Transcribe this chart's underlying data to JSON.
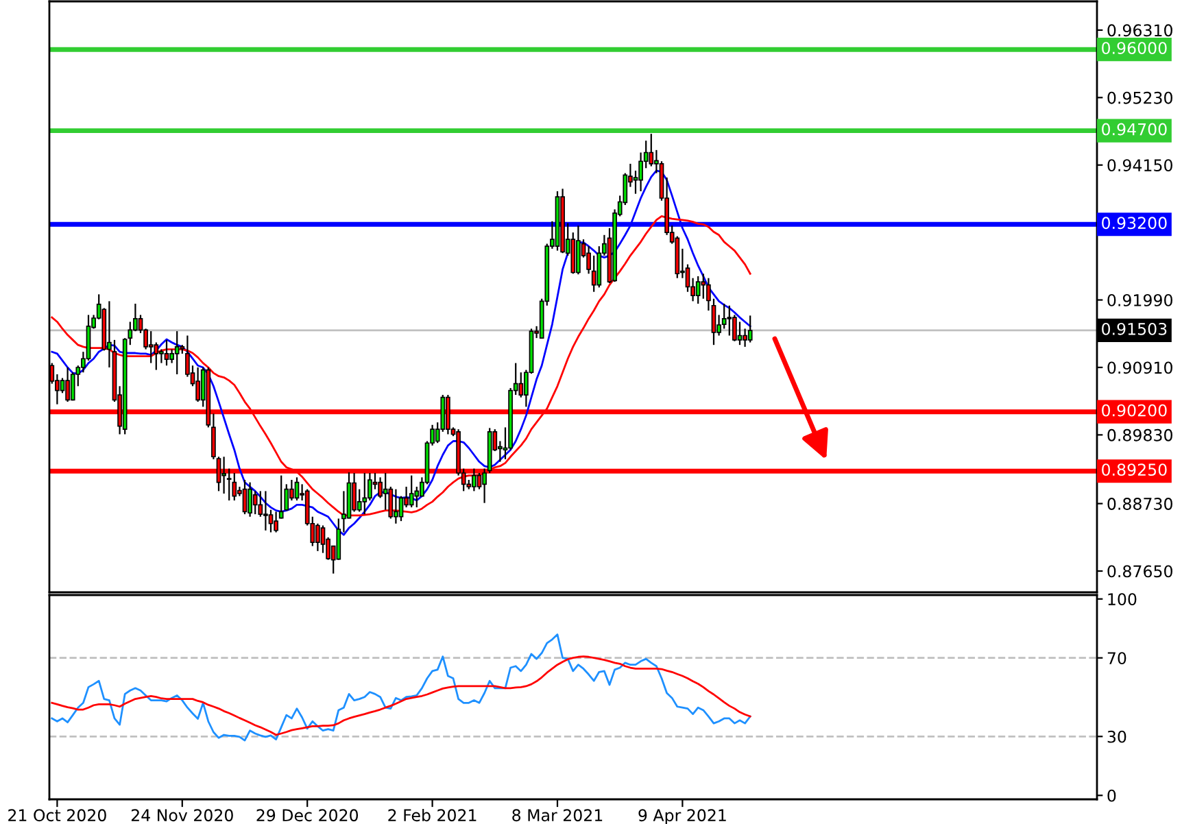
{
  "chart_data": [
    {
      "type": "candlestick",
      "categories": [
        null,
        null,
        null,
        null,
        null,
        null,
        null,
        null,
        null,
        null,
        null,
        null,
        null,
        null,
        null,
        null,
        null,
        null,
        null,
        null,
        null,
        null,
        null,
        null,
        null,
        null,
        null,
        null,
        null,
        null,
        null,
        null,
        null,
        null,
        null,
        null,
        null,
        null,
        null,
        null,
        null,
        null,
        null,
        null,
        null,
        null,
        null,
        null,
        null,
        null,
        null,
        null,
        null,
        null,
        null,
        null,
        null,
        null,
        null,
        null,
        null,
        null,
        null,
        null,
        null,
        null,
        null,
        null,
        null,
        null,
        null,
        null,
        null,
        null,
        null,
        null,
        null,
        null,
        null,
        null,
        null,
        null,
        null,
        null,
        null,
        null,
        null,
        null,
        null,
        null,
        null,
        null,
        null,
        null,
        null,
        null,
        null,
        null,
        null,
        null,
        null,
        null,
        null,
        null,
        null,
        null,
        null,
        null,
        null,
        null,
        null,
        null,
        null,
        null,
        null,
        null,
        null,
        null,
        null,
        null,
        null,
        null,
        null,
        null,
        null,
        null,
        null,
        null,
        null,
        null,
        null,
        null,
        null,
        null,
        null
      ],
      "ohlc": [
        [
          0.9094,
          0.9098,
          0.9065,
          0.9069
        ],
        [
          0.907,
          0.908,
          0.9032,
          0.9054
        ],
        [
          0.9054,
          0.9074,
          0.905,
          0.907
        ],
        [
          0.907,
          0.9091,
          0.9036,
          0.9039
        ],
        [
          0.9039,
          0.9083,
          0.9038,
          0.908
        ],
        [
          0.908,
          0.9094,
          0.9061,
          0.9091
        ],
        [
          0.9091,
          0.9116,
          0.9083,
          0.9105
        ],
        [
          0.9105,
          0.9175,
          0.9102,
          0.9157
        ],
        [
          0.9155,
          0.9175,
          0.9153,
          0.917
        ],
        [
          0.917,
          0.9208,
          0.9168,
          0.9192
        ],
        [
          0.9184,
          0.9186,
          0.9118,
          0.912
        ],
        [
          0.912,
          0.9197,
          0.9091,
          0.9131
        ],
        [
          0.9116,
          0.9135,
          0.9036,
          0.9039
        ],
        [
          0.9047,
          0.9061,
          0.8984,
          0.8997
        ],
        [
          0.8992,
          0.9138,
          0.8984,
          0.9136
        ],
        [
          0.9138,
          0.9164,
          0.9127,
          0.9151
        ],
        [
          0.9151,
          0.9193,
          0.9149,
          0.9169
        ],
        [
          0.9169,
          0.9175,
          0.9146,
          0.9151
        ],
        [
          0.9151,
          0.9153,
          0.912,
          0.9124
        ],
        [
          0.9127,
          0.9149,
          0.9098,
          0.9124
        ],
        [
          0.9127,
          0.9131,
          0.9087,
          0.9113
        ],
        [
          0.9113,
          0.912,
          0.9098,
          0.9116
        ],
        [
          0.9113,
          0.9135,
          0.9094,
          0.9104
        ],
        [
          0.9104,
          0.912,
          0.9098,
          0.9113
        ],
        [
          0.9113,
          0.9149,
          0.908,
          0.9124
        ],
        [
          0.9124,
          0.9127,
          0.9113,
          0.9121
        ],
        [
          0.9113,
          0.9142,
          0.9076,
          0.908
        ],
        [
          0.9082,
          0.9094,
          0.9061,
          0.9065
        ],
        [
          0.9069,
          0.9091,
          0.9036,
          0.9039
        ],
        [
          0.9039,
          0.9091,
          0.9028,
          0.9087
        ],
        [
          0.9087,
          0.9091,
          0.8995,
          0.8999
        ],
        [
          0.8995,
          0.9017,
          0.8944,
          0.8948
        ],
        [
          0.8945,
          0.8948,
          0.8893,
          0.8907
        ],
        [
          0.8918,
          0.8948,
          0.8889,
          0.8921
        ],
        [
          0.8912,
          0.8929,
          0.8878,
          0.8913
        ],
        [
          0.8907,
          0.8922,
          0.8878,
          0.8885
        ],
        [
          0.8894,
          0.89,
          0.8885,
          0.8889
        ],
        [
          0.8896,
          0.8911,
          0.8856,
          0.886
        ],
        [
          0.8858,
          0.8907,
          0.8852,
          0.8896
        ],
        [
          0.8887,
          0.8893,
          0.8856,
          0.8871
        ],
        [
          0.8871,
          0.8893,
          0.8852,
          0.8856
        ],
        [
          0.8856,
          0.8893,
          0.883,
          0.8854
        ],
        [
          0.8855,
          0.8863,
          0.8827,
          0.8841
        ],
        [
          0.8845,
          0.886,
          0.8827,
          0.883
        ],
        [
          0.885,
          0.8918,
          0.8849,
          0.886
        ],
        [
          0.8863,
          0.8904,
          0.8862,
          0.8896
        ],
        [
          0.8896,
          0.8911,
          0.8878,
          0.8882
        ],
        [
          0.8882,
          0.8915,
          0.8878,
          0.8907
        ],
        [
          0.8889,
          0.8904,
          0.8878,
          0.8887
        ],
        [
          0.8893,
          0.8896,
          0.8838,
          0.8841
        ],
        [
          0.8841,
          0.8852,
          0.8805,
          0.8811
        ],
        [
          0.8838,
          0.8841,
          0.8797,
          0.8811
        ],
        [
          0.8834,
          0.8838,
          0.8794,
          0.8808
        ],
        [
          0.8816,
          0.8819,
          0.8783,
          0.8785
        ],
        [
          0.8805,
          0.8805,
          0.8761,
          0.8783
        ],
        [
          0.8784,
          0.8849,
          0.8783,
          0.8832
        ],
        [
          0.8849,
          0.8893,
          0.8827,
          0.8856
        ],
        [
          0.885,
          0.8923,
          0.8849,
          0.8906
        ],
        [
          0.8906,
          0.8922,
          0.886,
          0.8863
        ],
        [
          0.8863,
          0.8896,
          0.886,
          0.8876
        ],
        [
          0.8876,
          0.8922,
          0.8856,
          0.8882
        ],
        [
          0.8882,
          0.8922,
          0.8878,
          0.8911
        ],
        [
          0.8907,
          0.8922,
          0.8896,
          0.8904
        ],
        [
          0.8907,
          0.8915,
          0.8882,
          0.8885
        ],
        [
          0.8889,
          0.8922,
          0.8863,
          0.8896
        ],
        [
          0.8896,
          0.89,
          0.8849,
          0.8852
        ],
        [
          0.8852,
          0.8896,
          0.8841,
          0.886
        ],
        [
          0.8852,
          0.8885,
          0.8845,
          0.8882
        ],
        [
          0.8882,
          0.89,
          0.8867,
          0.8871
        ],
        [
          0.8871,
          0.8918,
          0.8867,
          0.8889
        ],
        [
          0.8885,
          0.89,
          0.8867,
          0.8893
        ],
        [
          0.8885,
          0.8915,
          0.8885,
          0.8907
        ],
        [
          0.8907,
          0.8973,
          0.8904,
          0.897
        ],
        [
          0.897,
          0.8999,
          0.8966,
          0.8992
        ],
        [
          0.8973,
          0.9003,
          0.897,
          0.8992
        ],
        [
          0.8992,
          0.9047,
          0.8988,
          0.9043
        ],
        [
          0.9043,
          0.9047,
          0.8984,
          0.8992
        ],
        [
          0.8992,
          0.8995,
          0.8981,
          0.8984
        ],
        [
          0.8988,
          0.8992,
          0.8918,
          0.8922
        ],
        [
          0.8922,
          0.8929,
          0.8893,
          0.8904
        ],
        [
          0.8904,
          0.8911,
          0.8896,
          0.89
        ],
        [
          0.89,
          0.8929,
          0.8893,
          0.8918
        ],
        [
          0.8918,
          0.8922,
          0.8896,
          0.89
        ],
        [
          0.8904,
          0.8929,
          0.8874,
          0.8922
        ],
        [
          0.8926,
          0.8994,
          0.8922,
          0.8988
        ],
        [
          0.8988,
          0.8992,
          0.8957,
          0.8959
        ],
        [
          0.8961,
          0.8973,
          0.894,
          0.8964
        ],
        [
          0.8959,
          0.8995,
          0.8944,
          0.8962
        ],
        [
          0.8962,
          0.9058,
          0.8959,
          0.9054
        ],
        [
          0.9054,
          0.9098,
          0.9047,
          0.9065
        ],
        [
          0.9065,
          0.9083,
          0.9043,
          0.9047
        ],
        [
          0.9047,
          0.9087,
          0.9028,
          0.9083
        ],
        [
          0.9083,
          0.9153,
          0.9081,
          0.9149
        ],
        [
          0.9149,
          0.9157,
          0.9138,
          0.9146
        ],
        [
          0.9138,
          0.9201,
          0.9137,
          0.9197
        ],
        [
          0.9197,
          0.9289,
          0.919,
          0.9285
        ],
        [
          0.9285,
          0.9325,
          0.9281,
          0.9296
        ],
        [
          0.9285,
          0.9373,
          0.9278,
          0.9364
        ],
        [
          0.9364,
          0.9377,
          0.9274,
          0.9276
        ],
        [
          0.9274,
          0.9322,
          0.927,
          0.9296
        ],
        [
          0.9296,
          0.9307,
          0.9241,
          0.9243
        ],
        [
          0.9243,
          0.9318,
          0.924,
          0.9294
        ],
        [
          0.9289,
          0.9296,
          0.9267,
          0.927
        ],
        [
          0.9274,
          0.9285,
          0.9241,
          0.9248
        ],
        [
          0.9245,
          0.927,
          0.9212,
          0.9223
        ],
        [
          0.9223,
          0.9285,
          0.9219,
          0.9274
        ],
        [
          0.9274,
          0.9303,
          0.927,
          0.9289
        ],
        [
          0.9298,
          0.9314,
          0.9226,
          0.9228
        ],
        [
          0.923,
          0.9344,
          0.9228,
          0.9338
        ],
        [
          0.9336,
          0.9366,
          0.9333,
          0.9356
        ],
        [
          0.9355,
          0.9402,
          0.9351,
          0.9399
        ],
        [
          0.9397,
          0.9417,
          0.938,
          0.9388
        ],
        [
          0.9391,
          0.9406,
          0.9369,
          0.9395
        ],
        [
          0.9391,
          0.9435,
          0.9373,
          0.9421
        ],
        [
          0.9421,
          0.9454,
          0.941,
          0.9435
        ],
        [
          0.9435,
          0.9465,
          0.9413,
          0.9417
        ],
        [
          0.9417,
          0.9439,
          0.9402,
          0.9422
        ],
        [
          0.9417,
          0.9421,
          0.9358,
          0.9362
        ],
        [
          0.9362,
          0.9395,
          0.9303,
          0.9307
        ],
        [
          0.9307,
          0.9318,
          0.9289,
          0.9292
        ],
        [
          0.9298,
          0.9301,
          0.9234,
          0.9241
        ],
        [
          0.9243,
          0.9281,
          0.9234,
          0.9245
        ],
        [
          0.925,
          0.9256,
          0.9212,
          0.922
        ],
        [
          0.922,
          0.9234,
          0.9197,
          0.9206
        ],
        [
          0.9206,
          0.9237,
          0.9193,
          0.9228
        ],
        [
          0.9228,
          0.9241,
          0.9201,
          0.9223
        ],
        [
          0.9223,
          0.9234,
          0.9182,
          0.9198
        ],
        [
          0.919,
          0.9201,
          0.9127,
          0.9147
        ],
        [
          0.9147,
          0.9175,
          0.9142,
          0.9159
        ],
        [
          0.916,
          0.9193,
          0.9153,
          0.9169
        ],
        [
          0.9169,
          0.919,
          0.9142,
          0.9171
        ],
        [
          0.9171,
          0.9175,
          0.9133,
          0.9135
        ],
        [
          0.9135,
          0.9164,
          0.9127,
          0.9142
        ],
        [
          0.9142,
          0.9153,
          0.9124,
          0.9135
        ],
        [
          0.9135,
          0.9174,
          0.9131,
          0.915
        ]
      ],
      "colors": [
        "#ff0000",
        "#ff0000",
        "#00e000",
        "#ff0000",
        "#00e000",
        "#00e000",
        "#00e000",
        "#00e000",
        "#00e000",
        "#00e000",
        "#ff0000",
        "#00e000",
        "#ff0000",
        "#ff0000",
        "#00e000",
        "#00e000",
        "#00e000",
        "#ff0000",
        "#ff0000",
        "#ff0000",
        "#ff0000",
        "#00e000",
        "#ff0000",
        "#00e000",
        "#00e000",
        "#ff0000",
        "#ff0000",
        "#ff0000",
        "#ff0000",
        "#00e000",
        "#ff0000",
        "#ff0000",
        "#ff0000",
        "#00e000",
        "#00e000",
        "#ff0000",
        "#ff0000",
        "#ff0000",
        "#00e000",
        "#ff0000",
        "#ff0000",
        "#ff0000",
        "#ff0000",
        "#ff0000",
        "#00e000",
        "#00e000",
        "#ff0000",
        "#00e000",
        "#ff0000",
        "#ff0000",
        "#ff0000",
        "#ff0000",
        "#ff0000",
        "#ff0000",
        "#ff0000",
        "#00e000",
        "#00e000",
        "#00e000",
        "#ff0000",
        "#00e000",
        "#00e000",
        "#00e000",
        "#ff0000",
        "#ff0000",
        "#00e000",
        "#ff0000",
        "#00e000",
        "#00e000",
        "#ff0000",
        "#00e000",
        "#00e000",
        "#00e000",
        "#00e000",
        "#00e000",
        "#00e000",
        "#00e000",
        "#ff0000",
        "#ff0000",
        "#ff0000",
        "#ff0000",
        "#ff0000",
        "#00e000",
        "#ff0000",
        "#00e000",
        "#00e000",
        "#ff0000",
        "#00e000",
        "#00e000",
        "#00e000",
        "#00e000",
        "#ff0000",
        "#00e000",
        "#00e000",
        "#ff0000",
        "#00e000",
        "#00e000",
        "#00e000",
        "#00e000",
        "#ff0000",
        "#00e000",
        "#ff0000",
        "#00e000",
        "#ff0000",
        "#ff0000",
        "#ff0000",
        "#00e000",
        "#00e000",
        "#ff0000",
        "#00e000",
        "#00e000",
        "#00e000",
        "#ff0000",
        "#00e000",
        "#00e000",
        "#00e000",
        "#ff0000",
        "#00e000",
        "#ff0000",
        "#ff0000",
        "#ff0000",
        "#ff0000",
        "#00e000",
        "#ff0000",
        "#ff0000",
        "#00e000",
        "#ff0000",
        "#ff0000",
        "#ff0000",
        "#00e000",
        "#00e000",
        "#00e000",
        "#ff0000",
        "#00e000",
        "#ff0000",
        "#00e000"
      ],
      "series": [
        {
          "type": "line",
          "color": "#0000ff",
          "values": [
            0.9116,
            0.9113,
            0.9102,
            0.9091,
            0.9082,
            0.9081,
            0.9087,
            0.9098,
            0.9105,
            0.9116,
            0.9121,
            0.9127,
            0.9126,
            0.9116,
            0.9114,
            0.9114,
            0.9114,
            0.9113,
            0.9113,
            0.9111,
            0.9118,
            0.9128,
            0.9136,
            0.9131,
            0.9127,
            0.9124,
            0.9116,
            0.9105,
            0.9094,
            0.9091,
            0.908,
            0.9061,
            0.9036,
            0.901,
            0.8984,
            0.8959,
            0.8929,
            0.8907,
            0.89,
            0.8893,
            0.8884,
            0.8874,
            0.8867,
            0.8862,
            0.886,
            0.8862,
            0.8865,
            0.8871,
            0.8871,
            0.8869,
            0.8867,
            0.886,
            0.8856,
            0.8852,
            0.8841,
            0.883,
            0.8823,
            0.8834,
            0.8841,
            0.885,
            0.886,
            0.8871,
            0.8885,
            0.8891,
            0.8891,
            0.8888,
            0.8884,
            0.8882,
            0.8883,
            0.8882,
            0.8878,
            0.8885,
            0.8896,
            0.8911,
            0.8933,
            0.8951,
            0.8966,
            0.8973,
            0.8973,
            0.8971,
            0.8962,
            0.8951,
            0.894,
            0.8933,
            0.8931,
            0.8935,
            0.8943,
            0.8951,
            0.8959,
            0.8973,
            0.8992,
            0.9014,
            0.9043,
            0.9072,
            0.9094,
            0.9127,
            0.916,
            0.9204,
            0.9248,
            0.9274,
            null,
            0.9291,
            0.9291,
            0.9285,
            0.9278,
            0.927,
            0.9267,
            0.927,
            0.9276,
            0.9289,
            0.9303,
            0.9318,
            0.934,
            0.9362,
            0.938,
            0.9396,
            0.9406,
            0.9404,
            0.9391,
            0.9366,
            0.934,
            0.9314,
            0.9296,
            0.9274,
            0.9254,
            0.9237,
            0.9219,
            0.9208,
            0.9197,
            0.9191,
            0.9186,
            0.9179,
            0.9171,
            0.9164,
            0.9157
          ]
        },
        {
          "type": "line",
          "color": "#ff0000",
          "values": [
            0.9171,
            0.9164,
            0.9153,
            0.9143,
            0.9135,
            0.9127,
            0.9124,
            0.9122,
            0.9122,
            0.9122,
            0.9122,
            0.912,
            0.9114,
            0.9111,
            0.9109,
            0.9109,
            0.9109,
            0.9109,
            0.9109,
            0.9109,
            0.9114,
            0.9118,
            0.912,
            0.912,
            0.912,
            0.912,
            0.9118,
            0.9114,
            0.9107,
            0.9098,
            0.9091,
            0.9082,
            0.9077,
            0.9075,
            0.907,
            0.9063,
            0.905,
            0.9036,
            0.9025,
            0.9011,
            0.8997,
            0.8984,
            0.897,
            0.8955,
            0.894,
            0.8931,
            0.8928,
            0.8924,
            0.8916,
            0.8906,
            0.8896,
            0.8889,
            0.8882,
            0.8874,
            0.8867,
            0.886,
            0.8854,
            0.8854,
            0.8854,
            0.8854,
            0.8855,
            0.8856,
            0.8858,
            0.886,
            0.8862,
            0.8862,
            0.8862,
            0.8861,
            0.886,
            0.8859,
            0.8861,
            0.8865,
            0.8871,
            0.8876,
            0.8884,
            0.8891,
            0.89,
            0.8907,
            0.8913,
            0.8916,
            0.8918,
            0.8918,
            0.8919,
            0.8922,
            0.8927,
            0.8931,
            0.8933,
            0.8938,
            0.8948,
            0.8957,
            0.8966,
            0.8977,
            0.8992,
            0.9003,
            0.9014,
            0.9025,
            0.9043,
            0.9061,
            0.9083,
            0.9105,
            0.9124,
            0.914,
            0.9154,
            0.9169,
            0.9182,
            0.9197,
            0.9208,
            0.9223,
            0.9234,
            0.9245,
            0.9257,
            0.927,
            0.9281,
            0.9292,
            0.9305,
            0.9316,
            0.9327,
            0.9333,
            0.9331,
            0.9329,
            0.9328,
            0.9327,
            0.9326,
            0.9324,
            0.9321,
            0.932,
            0.9316,
            0.9308,
            0.9303,
            0.9292,
            0.9285,
            0.9278,
            0.9267,
            0.9256,
            0.9241
          ]
        }
      ],
      "ylim": [
        0.8731,
        0.9677
      ],
      "yticks": [
        {
          "value": 0.9631,
          "label": "0.96310"
        },
        {
          "value": 0.9523,
          "label": "0.95230"
        },
        {
          "value": 0.9415,
          "label": "0.94150"
        },
        {
          "value": 0.9199,
          "label": "0.91990"
        },
        {
          "value": 0.9091,
          "label": "0.90910"
        },
        {
          "value": 0.8983,
          "label": "0.89830"
        },
        {
          "value": 0.8873,
          "label": "0.88730"
        },
        {
          "value": 0.8765,
          "label": "0.87650"
        }
      ],
      "ref_lines": [
        {
          "axis": "y",
          "value": 0.96,
          "label": "0.96000",
          "color": "#32cd32"
        },
        {
          "axis": "y",
          "value": 0.947,
          "label": "0.94700",
          "color": "#32cd32"
        },
        {
          "axis": "y",
          "value": 0.932,
          "label": "0.93200",
          "color": "#0000ff"
        },
        {
          "axis": "y",
          "value": 0.91503,
          "label": "0.91503",
          "color": "#c0c0c0"
        },
        {
          "axis": "y",
          "value": 0.902,
          "label": "0.90200",
          "color": "#ff0000"
        },
        {
          "axis": "y",
          "value": 0.8925,
          "label": "0.89250",
          "color": "#ff0000"
        }
      ],
      "tick_labels": "y"
    },
    {
      "type": "line",
      "categories": [
        null,
        "21 Oct 2020",
        null,
        null,
        null,
        null,
        null,
        null,
        null,
        null,
        null,
        null,
        null,
        null,
        null,
        null,
        null,
        null,
        null,
        null,
        null,
        null,
        null,
        null,
        null,
        "24 Nov 2020",
        null,
        null,
        null,
        null,
        null,
        null,
        null,
        null,
        null,
        null,
        null,
        null,
        null,
        null,
        null,
        null,
        null,
        null,
        null,
        null,
        null,
        null,
        null,
        "29 Dec 2020",
        null,
        null,
        null,
        null,
        null,
        null,
        null,
        null,
        null,
        null,
        null,
        null,
        null,
        null,
        null,
        null,
        null,
        null,
        null,
        null,
        null,
        null,
        null,
        "2 Feb 2021",
        null,
        null,
        null,
        null,
        null,
        null,
        null,
        null,
        null,
        null,
        null,
        null,
        null,
        null,
        null,
        null,
        null,
        null,
        null,
        null,
        null,
        null,
        null,
        "8 Mar 2021",
        null,
        null,
        null,
        null,
        null,
        null,
        null,
        null,
        null,
        null,
        null,
        null,
        null,
        null,
        null,
        null,
        null,
        null,
        null,
        null,
        null,
        null,
        null,
        "9 Apr 2021",
        null,
        null,
        null,
        null,
        null,
        null,
        null,
        null,
        null,
        null,
        null,
        null,
        null
      ],
      "series": [
        {
          "color": "#1e90ff",
          "values": [
            39.2,
            37.7,
            39.2,
            37.2,
            40.9,
            44.7,
            47.1,
            55.1,
            56.6,
            58.3,
            49.1,
            48.4,
            39.2,
            36.0,
            51.6,
            53.4,
            54.6,
            53.4,
            50.9,
            48.4,
            48.4,
            48.4,
            47.9,
            49.6,
            50.9,
            48.4,
            44.7,
            41.7,
            39.0,
            47.1,
            37.7,
            32.2,
            29.3,
            30.8,
            30.3,
            30.3,
            29.8,
            28.0,
            33.0,
            31.5,
            30.5,
            29.8,
            30.5,
            28.5,
            34.7,
            40.9,
            39.2,
            44.2,
            39.7,
            34.0,
            37.7,
            35.2,
            33.0,
            33.7,
            33.0,
            43.4,
            44.7,
            51.6,
            48.4,
            49.1,
            50.1,
            52.6,
            51.6,
            50.1,
            44.7,
            44.2,
            49.6,
            48.4,
            50.1,
            50.4,
            50.9,
            54.6,
            59.6,
            63.3,
            64.0,
            70.7,
            60.8,
            59.6,
            49.1,
            47.1,
            47.1,
            48.4,
            47.1,
            52.1,
            58.3,
            54.6,
            54.6,
            54.6,
            65.0,
            65.8,
            63.3,
            66.5,
            72.0,
            69.5,
            72.5,
            77.5,
            79.4,
            81.9,
            70.0,
            69.5,
            63.3,
            66.5,
            64.5,
            61.6,
            58.3,
            62.8,
            63.3,
            56.3,
            64.0,
            65.0,
            67.5,
            66.5,
            66.5,
            68.3,
            69.5,
            67.5,
            65.8,
            59.6,
            52.1,
            49.6,
            45.2,
            44.7,
            44.2,
            41.4,
            44.7,
            43.4,
            40.2,
            36.7,
            37.7,
            39.2,
            39.2,
            36.7,
            38.2,
            36.7,
            40.2
          ]
        },
        {
          "color": "#ff0000",
          "values": [
            47.1,
            46.4,
            45.6,
            44.9,
            44.4,
            43.7,
            43.7,
            44.7,
            45.9,
            46.4,
            46.4,
            46.4,
            45.9,
            45.2,
            46.7,
            47.9,
            49.1,
            49.6,
            50.1,
            50.6,
            50.1,
            49.4,
            49.1,
            49.1,
            49.1,
            49.1,
            49.1,
            49.1,
            48.1,
            47.4,
            46.1,
            45.2,
            44.2,
            42.9,
            41.9,
            40.7,
            39.4,
            38.2,
            37.0,
            35.7,
            34.7,
            33.5,
            32.3,
            30.8,
            31.5,
            32.3,
            33.2,
            33.7,
            34.2,
            34.7,
            35.2,
            35.2,
            35.5,
            35.5,
            35.7,
            36.7,
            38.2,
            39.2,
            40.0,
            40.7,
            41.4,
            42.2,
            42.9,
            43.7,
            44.7,
            45.6,
            46.7,
            47.9,
            49.1,
            49.6,
            50.1,
            50.6,
            51.4,
            52.4,
            53.4,
            54.4,
            54.9,
            55.4,
            55.6,
            55.6,
            55.6,
            55.6,
            55.6,
            55.6,
            55.6,
            55.6,
            55.1,
            54.6,
            54.6,
            54.9,
            55.1,
            55.6,
            56.6,
            58.1,
            60.1,
            62.5,
            64.5,
            66.5,
            68.0,
            69.3,
            70.0,
            70.5,
            70.7,
            70.5,
            70.0,
            69.5,
            69.0,
            68.3,
            67.5,
            67.0,
            65.8,
            65.0,
            64.5,
            64.5,
            64.5,
            64.5,
            64.5,
            64.3,
            63.5,
            62.8,
            61.8,
            60.8,
            59.6,
            58.1,
            56.8,
            55.1,
            53.1,
            51.4,
            49.4,
            47.4,
            45.6,
            44.2,
            42.4,
            41.2,
            40.2
          ]
        }
      ],
      "ylim": [
        -2,
        102
      ],
      "yticks": [
        0,
        30,
        70,
        100
      ],
      "ref_lines": [
        {
          "axis": "y",
          "value": 30,
          "color": "#c0c0c0",
          "line_style": "dashed"
        },
        {
          "axis": "y",
          "value": 70,
          "color": "#c0c0c0",
          "line_style": "dashed"
        }
      ]
    }
  ]
}
